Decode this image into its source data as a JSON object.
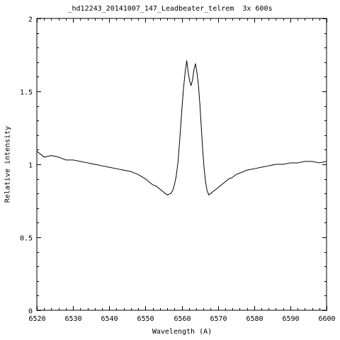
{
  "chart_data": {
    "type": "line",
    "title": "_hd12243_20141007_147_Leadbeater_telrem  3x 600s",
    "xlabel": "Wavelength (A)",
    "ylabel": "Relative intensity",
    "xlim": [
      6520,
      6600
    ],
    "ylim": [
      0,
      2
    ],
    "xticks": [
      6520,
      6530,
      6540,
      6550,
      6560,
      6570,
      6580,
      6590,
      6600
    ],
    "yticks": [
      0,
      0.5,
      1,
      1.5,
      2
    ],
    "ytick_labels": [
      "0",
      "0.5",
      "1",
      "1.5",
      "2"
    ],
    "grid": false,
    "line_color": "#000000",
    "series": [
      {
        "x": [
          6520,
          6522,
          6524,
          6526,
          6528,
          6530,
          6532,
          6534,
          6536,
          6538,
          6540,
          6542,
          6544,
          6546,
          6548,
          6550,
          6551,
          6552,
          6553,
          6554,
          6555,
          6556,
          6557,
          6557.5,
          6558,
          6558.5,
          6559,
          6559.5,
          6560,
          6560.5,
          6561,
          6561.4,
          6561.8,
          6562.2,
          6562.6,
          6563,
          6563.4,
          6563.8,
          6564.2,
          6564.6,
          6565,
          6565.4,
          6565.8,
          6566.2,
          6566.6,
          6567,
          6567.5,
          6568,
          6568.5,
          6569,
          6570,
          6571,
          6572,
          6573,
          6574,
          6575,
          6576,
          6577,
          6578,
          6580,
          6582,
          6584,
          6586,
          6588,
          6590,
          6592,
          6594,
          6596,
          6598,
          6600
        ],
        "y": [
          1.09,
          1.05,
          1.06,
          1.05,
          1.03,
          1.03,
          1.02,
          1.01,
          1.0,
          0.99,
          0.98,
          0.97,
          0.96,
          0.95,
          0.93,
          0.9,
          0.88,
          0.86,
          0.85,
          0.83,
          0.81,
          0.79,
          0.8,
          0.82,
          0.86,
          0.92,
          1.02,
          1.18,
          1.36,
          1.52,
          1.64,
          1.71,
          1.63,
          1.57,
          1.54,
          1.58,
          1.65,
          1.69,
          1.63,
          1.55,
          1.42,
          1.26,
          1.1,
          0.97,
          0.88,
          0.82,
          0.79,
          0.8,
          0.81,
          0.82,
          0.84,
          0.86,
          0.88,
          0.9,
          0.91,
          0.93,
          0.94,
          0.95,
          0.96,
          0.97,
          0.98,
          0.99,
          1.0,
          1.0,
          1.01,
          1.01,
          1.02,
          1.02,
          1.01,
          1.02
        ]
      }
    ]
  }
}
